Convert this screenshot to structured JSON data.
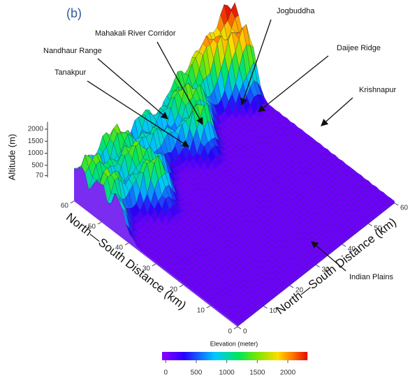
{
  "chart_data": {
    "type": "surface3d",
    "panel_label": "(b)",
    "zlabel": "Altitude (m)",
    "zticks": [
      2000,
      1500,
      1000,
      500,
      70
    ],
    "xlabel": "North—South Distance (km)",
    "xticks": [
      0,
      10,
      20,
      30,
      40,
      50,
      60
    ],
    "ylabel": "North—South Distance (km)",
    "yticks": [
      0,
      10,
      20,
      30,
      40,
      50,
      60
    ],
    "colorbar": {
      "label": "Elevation (meter)",
      "ticks": [
        0,
        500,
        1000,
        1500,
        2000
      ],
      "lim": [
        -60,
        2320
      ]
    },
    "annotations": [
      "Jogbuddha",
      "Mahakali River Corridor",
      "Daijee Ridge",
      "Nandhaur Range",
      "Tanakpur",
      "Krishnapur",
      "Indian Plains"
    ]
  }
}
